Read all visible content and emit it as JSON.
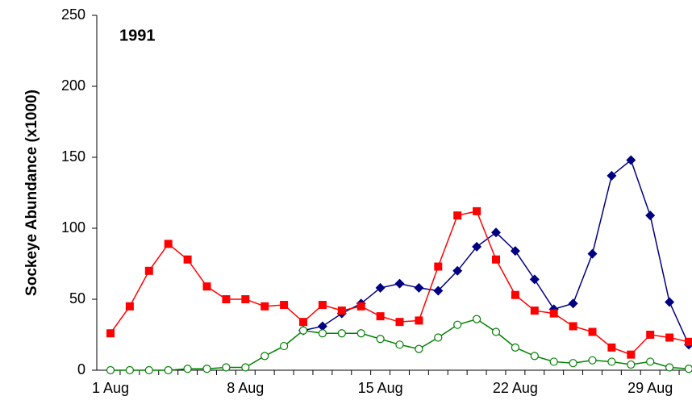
{
  "chart_data": {
    "type": "line",
    "title": "1991",
    "y_label": "Sockeye Abundance (x1000)",
    "categories": [
      "1 Aug",
      null,
      null,
      null,
      null,
      null,
      null,
      "8 Aug",
      null,
      null,
      null,
      null,
      null,
      null,
      "15 Aug",
      null,
      null,
      null,
      null,
      null,
      null,
      "22 Aug",
      null,
      null,
      null,
      null,
      null,
      null,
      "29 Aug",
      null,
      null
    ],
    "ylim": [
      0,
      250
    ],
    "yticks": [
      0,
      50,
      100,
      150,
      200,
      250
    ],
    "series": [
      {
        "color": "#000080",
        "marker": "diamond",
        "values": [
          null,
          null,
          null,
          null,
          null,
          null,
          null,
          null,
          null,
          null,
          28,
          31,
          40,
          47,
          58,
          61,
          58,
          56,
          70,
          87,
          97,
          84,
          64,
          43,
          47,
          82,
          137,
          148,
          109,
          48,
          18
        ]
      },
      {
        "color": "#ff0000",
        "marker": "square",
        "values": [
          26,
          45,
          70,
          89,
          78,
          59,
          50,
          50,
          45,
          46,
          34,
          46,
          42,
          45,
          38,
          34,
          35,
          73,
          109,
          112,
          78,
          53,
          42,
          40,
          31,
          27,
          16,
          11,
          25,
          23,
          20
        ]
      },
      {
        "color": "#008000",
        "marker": "circle",
        "values": [
          0,
          0,
          0,
          0,
          1,
          1,
          2,
          2,
          10,
          17,
          28,
          26,
          26,
          26,
          22,
          18,
          15,
          23,
          32,
          36,
          27,
          16,
          10,
          6,
          5,
          7,
          6,
          4,
          6,
          2,
          1
        ]
      }
    ]
  }
}
